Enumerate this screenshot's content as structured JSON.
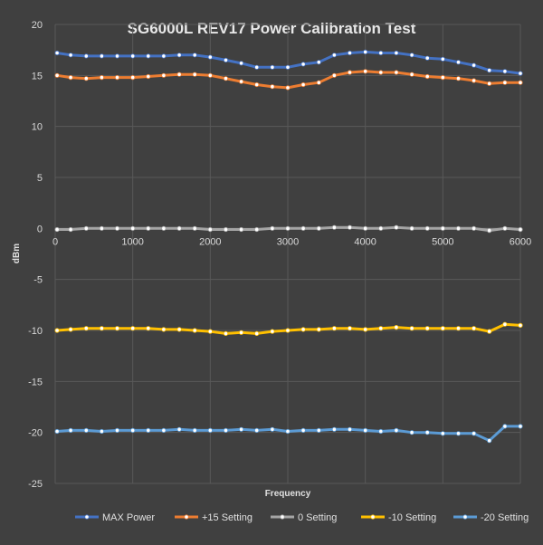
{
  "chart_data": {
    "type": "line",
    "title": "SG6000L REV17 Power Calibration Test",
    "xlabel": "Frequency",
    "ylabel": "dBm",
    "xlim": [
      0,
      6000
    ],
    "ylim": [
      -25,
      20
    ],
    "x_ticks": [
      0,
      1000,
      2000,
      3000,
      4000,
      5000,
      6000
    ],
    "y_ticks": [
      20,
      15,
      10,
      5,
      0,
      -5,
      -10,
      -15,
      -20,
      -25
    ],
    "x": [
      25,
      200,
      400,
      600,
      800,
      1000,
      1200,
      1400,
      1600,
      1800,
      2000,
      2200,
      2400,
      2600,
      2800,
      3000,
      3200,
      3400,
      3600,
      3800,
      4000,
      4200,
      4400,
      4600,
      4800,
      5000,
      5200,
      5400,
      5600,
      5800,
      6000
    ],
    "legend_position": "bottom",
    "series": [
      {
        "name": "MAX Power",
        "color": "#4472c4",
        "values": [
          17.2,
          17.0,
          16.9,
          16.9,
          16.9,
          16.9,
          16.9,
          16.9,
          17.0,
          17.0,
          16.8,
          16.5,
          16.2,
          15.8,
          15.8,
          15.8,
          16.1,
          16.3,
          17.0,
          17.2,
          17.3,
          17.2,
          17.2,
          17.0,
          16.7,
          16.6,
          16.3,
          16.0,
          15.5,
          15.4,
          15.2
        ]
      },
      {
        "name": "+15 Setting",
        "color": "#ed7d31",
        "values": [
          15.0,
          14.8,
          14.7,
          14.8,
          14.8,
          14.8,
          14.9,
          15.0,
          15.1,
          15.1,
          15.0,
          14.7,
          14.4,
          14.1,
          13.9,
          13.8,
          14.1,
          14.3,
          15.0,
          15.3,
          15.4,
          15.3,
          15.3,
          15.1,
          14.9,
          14.8,
          14.7,
          14.5,
          14.2,
          14.3,
          14.3
        ]
      },
      {
        "name": "0 Setting",
        "color": "#a5a5a5",
        "values": [
          -0.1,
          -0.1,
          0.0,
          0.0,
          0.0,
          0.0,
          0.0,
          0.0,
          0.0,
          0.0,
          -0.1,
          -0.1,
          -0.1,
          -0.1,
          0.0,
          0.0,
          0.0,
          0.0,
          0.1,
          0.1,
          0.0,
          0.0,
          0.1,
          0.0,
          0.0,
          0.0,
          0.0,
          0.0,
          -0.2,
          0.0,
          -0.1
        ]
      },
      {
        "name": "-10 Setting",
        "color": "#ffc000",
        "values": [
          -10.0,
          -9.9,
          -9.8,
          -9.8,
          -9.8,
          -9.8,
          -9.8,
          -9.9,
          -9.9,
          -10.0,
          -10.1,
          -10.3,
          -10.2,
          -10.3,
          -10.1,
          -10.0,
          -9.9,
          -9.9,
          -9.8,
          -9.8,
          -9.9,
          -9.8,
          -9.7,
          -9.8,
          -9.8,
          -9.8,
          -9.8,
          -9.8,
          -10.1,
          -9.4,
          -9.5
        ]
      },
      {
        "name": "-20 Setting",
        "color": "#5b9bd5",
        "values": [
          -19.9,
          -19.8,
          -19.8,
          -19.9,
          -19.8,
          -19.8,
          -19.8,
          -19.8,
          -19.7,
          -19.8,
          -19.8,
          -19.8,
          -19.7,
          -19.8,
          -19.7,
          -19.9,
          -19.8,
          -19.8,
          -19.7,
          -19.7,
          -19.8,
          -19.9,
          -19.8,
          -20.0,
          -20.0,
          -20.1,
          -20.1,
          -20.1,
          -20.8,
          -19.4,
          -19.4
        ]
      }
    ]
  }
}
